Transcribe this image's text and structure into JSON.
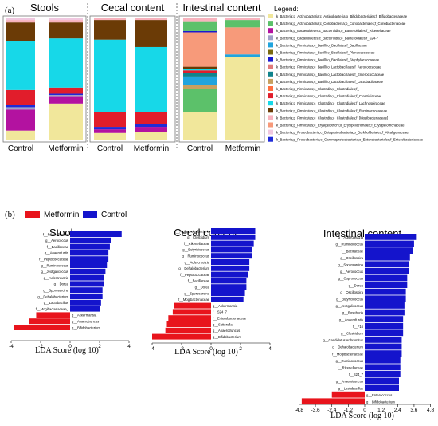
{
  "panel_a_label": "(a)",
  "panel_b_label": "(b)",
  "colors": {
    "f_Bifidobacteriaceae": "#f1e79b",
    "f_Coriobacteriaceae": "#5cc16a",
    "f_Rikenellaceae": "#b312a0",
    "f_S24_7": "#a0a0c8",
    "f_Bacillaceae": "#20a4dd",
    "f_Planococcaceae": "#7a6a10",
    "f_Staphylococcaceae": "#1a1ad0",
    "f_Aerococcaceae": "#e07a7a",
    "f_Enterococcaceae": "#10838c",
    "f_Lactobacillaceae": "#c7a060",
    "f_Clostridiaceae_orange": "#ff6f40",
    "f_Clostridiaceae": "#e11d2b",
    "f_Lachnospiraceae": "#17d8e8",
    "f_Ruminococcaceae": "#6b3b06",
    "f_Mogibacteriaceae": "#f8b2bd",
    "f_Erysipelotrichaceae": "#f79a7a",
    "f_Alcaligenaceae": "#f0c8e0",
    "f_Enterobacteriaceae": "#1f2bd8",
    "metformin": "#e8141c",
    "control": "#1414cc"
  },
  "legend": {
    "title": "Legend:",
    "items": [
      {
        "key": "f_Bifidobacteriaceae",
        "label": "k_Bacteria;p_Actinobacteria;c_Actinobacteria;o_Bifidobacteriales;f_Bifidobacteriaceae"
      },
      {
        "key": "f_Coriobacteriaceae",
        "label": "k_Bacteria;p_Actinobacteria;c_Coriobacteriia;o_Coriobacteriales;f_Coriobacteriaceae"
      },
      {
        "key": "f_Rikenellaceae",
        "label": "k_Bacteria;p_Bacteroidetes;c_Bacteroidia;o_Bacteroidales;f_Rikenellaceae"
      },
      {
        "key": "f_S24_7",
        "label": "k_Bacteria;p_Bacteroidetes;c_Bacteroidia;o_Bacteroidales;f_S24-7"
      },
      {
        "key": "f_Bacillaceae",
        "label": "k_Bacteria;p_Firmicutes;c_Bacilli;o_Bacillales;f_Bacillaceae"
      },
      {
        "key": "f_Planococcaceae",
        "label": "k_Bacteria;p_Firmicutes;c_Bacilli;o_Bacillales;f_Planococcaceae"
      },
      {
        "key": "f_Staphylococcaceae",
        "label": "k_Bacteria;p_Firmicutes;c_Bacilli;o_Bacillales;f_Staphylococcaceae"
      },
      {
        "key": "f_Aerococcaceae",
        "label": "k_Bacteria;p_Firmicutes;c_Bacilli;o_Lactobacillales;f_Aerococcaceae"
      },
      {
        "key": "f_Enterococcaceae",
        "label": "k_Bacteria;p_Firmicutes;c_Bacilli;o_Lactobacillales;f_Enterococcaceae"
      },
      {
        "key": "f_Lactobacillaceae",
        "label": "k_Bacteria;p_Firmicutes;c_Bacilli;o_Lactobacillales;f_Lactobacillaceae"
      },
      {
        "key": "f_Clostridiaceae_orange",
        "label": "k_Bacteria;p_Firmicutes;c_Clostridia;o_Clostridiales;f_"
      },
      {
        "key": "f_Clostridiaceae",
        "label": "k_Bacteria;p_Firmicutes;c_Clostridia;o_Clostridiales;f_Clostridiaceae"
      },
      {
        "key": "f_Lachnospiraceae",
        "label": "k_Bacteria;p_Firmicutes;c_Clostridia;o_Clostridiales;f_Lachnospiraceae"
      },
      {
        "key": "f_Ruminococcaceae",
        "label": "k_Bacteria;p_Firmicutes;c_Clostridia;o_Clostridiales;f_Ruminococcaceae"
      },
      {
        "key": "f_Mogibacteriaceae",
        "label": "k_Bacteria;p_Firmicutes;c_Clostridia;o_Clostridiales;f_[Mogibacteriaceae]"
      },
      {
        "key": "f_Erysipelotrichaceae",
        "label": "k_Bacteria;p_Firmicutes;c_Erysipelotrichi;o_Erysipelotrichales;f_Erysipelotrichaceae"
      },
      {
        "key": "f_Alcaligenaceae",
        "label": "k_Bacteria;p_Proteobacteria;c_Betaproteobacteria;o_Burkholderiales;f_Alcaligenaceae"
      },
      {
        "key": "f_Enterobacteriaceae",
        "label": "k_Bacteria;p_Proteobacteria;c_Gammaproteobacteria;o_Enterobacteriales;f_Enterobacteriaceae"
      }
    ]
  },
  "chart_data": [
    {
      "type": "bar",
      "stacked": true,
      "title": "Stools",
      "categories": [
        "Control",
        "Metformin"
      ],
      "ylim": [
        0,
        1
      ],
      "stack_order_bottom_to_top": true,
      "series": [
        {
          "key": "f_Bifidobacteriaceae",
          "values": [
            0.08,
            0.3
          ]
        },
        {
          "key": "f_Rikenellaceae",
          "values": [
            0.17,
            0.06
          ]
        },
        {
          "key": "f_S24_7",
          "values": [
            0.02,
            0.01
          ]
        },
        {
          "key": "f_Enterobacteriaceae",
          "values": [
            0.02,
            0.01
          ]
        },
        {
          "key": "f_Clostridiaceae",
          "values": [
            0.12,
            0.05
          ]
        },
        {
          "key": "f_Lachnospiraceae",
          "values": [
            0.4,
            0.4
          ]
        },
        {
          "key": "f_Ruminococcaceae",
          "values": [
            0.15,
            0.13
          ]
        },
        {
          "key": "f_Mogibacteriaceae",
          "values": [
            0.02,
            0.02
          ]
        },
        {
          "key": "f_Alcaligenaceae",
          "values": [
            0.02,
            0.02
          ]
        }
      ]
    },
    {
      "type": "bar",
      "stacked": true,
      "title": "Cecal content",
      "categories": [
        "Control",
        "Metformin"
      ],
      "ylim": [
        0,
        1
      ],
      "series": [
        {
          "key": "f_Bifidobacteriaceae",
          "values": [
            0.06,
            0.07
          ]
        },
        {
          "key": "f_Rikenellaceae",
          "values": [
            0.03,
            0.04
          ]
        },
        {
          "key": "f_Enterobacteriaceae",
          "values": [
            0.02,
            0.02
          ]
        },
        {
          "key": "f_Clostridiaceae",
          "values": [
            0.12,
            0.1
          ]
        },
        {
          "key": "f_Lachnospiraceae",
          "values": [
            0.59,
            0.53
          ]
        },
        {
          "key": "f_Ruminococcaceae",
          "values": [
            0.16,
            0.22
          ]
        },
        {
          "key": "f_Mogibacteriaceae",
          "values": [
            0.02,
            0.02
          ]
        }
      ]
    },
    {
      "type": "bar",
      "stacked": true,
      "title": "Intestinal content",
      "categories": [
        "Control",
        "Metformin"
      ],
      "ylim": [
        0,
        1
      ],
      "series": [
        {
          "key": "f_Bifidobacteriaceae",
          "values": [
            0.23,
            0.68
          ]
        },
        {
          "key": "f_Coriobacteriaceae",
          "values": [
            0.19,
            0.0
          ]
        },
        {
          "key": "f_Lactobacillaceae",
          "values": [
            0.03,
            0.0
          ]
        },
        {
          "key": "f_Bacillaceae",
          "values": [
            0.07,
            0.02
          ]
        },
        {
          "key": "f_Enterococcaceae",
          "values": [
            0.03,
            0.0
          ]
        },
        {
          "key": "f_Clostridiaceae",
          "values": [
            0.02,
            0.0
          ]
        },
        {
          "key": "f_Lachnospiraceae",
          "values": [
            0.01,
            0.0
          ]
        },
        {
          "key": "f_Ruminococcaceae",
          "values": [
            0.02,
            0.0
          ]
        },
        {
          "key": "f_Erysipelotrichaceae",
          "values": [
            0.28,
            0.22
          ]
        },
        {
          "key": "f_Staphylococcaceae",
          "values": [
            0.01,
            0.0
          ]
        },
        {
          "key": "f_Coriobacteriaceae",
          "values": [
            0.08,
            0.06
          ]
        },
        {
          "key": "f_Mogibacteriaceae",
          "values": [
            0.03,
            0.02
          ]
        }
      ]
    },
    {
      "type": "bar",
      "orientation": "horizontal",
      "title": "Stools",
      "xlabel": "LDA Score (log 10)",
      "xlim": [
        -4,
        4
      ],
      "xticks": [
        "-4",
        "-2",
        "0",
        "2",
        "4"
      ],
      "xtick_values": [
        -4,
        -2,
        0,
        2,
        4
      ],
      "features": [
        {
          "label": "f__Rikenellaceae",
          "value": 3.5,
          "group": "Control"
        },
        {
          "label": "g__Aerococcus",
          "value": 2.8,
          "group": "Control"
        },
        {
          "label": "f__Bacillaceae",
          "value": 2.7,
          "group": "Control"
        },
        {
          "label": "g__Anaerofustis",
          "value": 2.6,
          "group": "Control"
        },
        {
          "label": "f__Peptococcaceae",
          "value": 2.6,
          "group": "Control"
        },
        {
          "label": "g__Ruminococcus",
          "value": 2.5,
          "group": "Control"
        },
        {
          "label": "g__Jeotgalicoccus",
          "value": 2.4,
          "group": "Control"
        },
        {
          "label": "g__Adlercreutzia",
          "value": 2.3,
          "group": "Control"
        },
        {
          "label": "g__Dorea",
          "value": 2.3,
          "group": "Control"
        },
        {
          "label": "g__Sporosarcina",
          "value": 2.2,
          "group": "Control"
        },
        {
          "label": "g__Dehalobacterium",
          "value": 2.2,
          "group": "Control"
        },
        {
          "label": "g__Lactobacillus",
          "value": 2.1,
          "group": "Control"
        },
        {
          "label": "f__Mogibacteriaceae_",
          "value": 2.0,
          "group": "Control"
        },
        {
          "label": "g__Akkermansia",
          "value": -2.3,
          "group": "Metformin"
        },
        {
          "label": "g__Anaerotruncus",
          "value": -2.8,
          "group": "Metformin"
        },
        {
          "label": "g__Bifidobacterium",
          "value": -3.8,
          "group": "Metformin"
        }
      ]
    },
    {
      "type": "bar",
      "orientation": "horizontal",
      "title": "Cecal content",
      "xlabel": "LDA Score (log 10)",
      "xlim": [
        -4,
        4
      ],
      "xticks": [
        "-4",
        "-2",
        "0",
        "2",
        "4"
      ],
      "xtick_values": [
        -4,
        -2,
        0,
        2,
        4
      ],
      "features": [
        {
          "label": "c__Alphaproteobacteria",
          "value": 3.0,
          "group": "Control"
        },
        {
          "label": "g__Clostridium",
          "value": 3.0,
          "group": "Control"
        },
        {
          "label": "f__Rikenellaceae",
          "value": 2.9,
          "group": "Control"
        },
        {
          "label": "g__Butyricicoccus",
          "value": 2.8,
          "group": "Control"
        },
        {
          "label": "g__Ruminococcus",
          "value": 2.8,
          "group": "Control"
        },
        {
          "label": "g__Adlercreutzia",
          "value": 2.6,
          "group": "Control"
        },
        {
          "label": "g__Dehalobacterium",
          "value": 2.6,
          "group": "Control"
        },
        {
          "label": "f__Peptococcaceae",
          "value": 2.5,
          "group": "Control"
        },
        {
          "label": "f__Bacillaceae",
          "value": 2.4,
          "group": "Control"
        },
        {
          "label": "g__Dorea",
          "value": 2.4,
          "group": "Control"
        },
        {
          "label": "g__Sporosarcina",
          "value": 2.3,
          "group": "Control"
        },
        {
          "label": "f__Mogibacteriaceae",
          "value": 2.2,
          "group": "Control"
        },
        {
          "label": "g__Akkermansia",
          "value": -2.5,
          "group": "Metformin"
        },
        {
          "label": "f__S24_7",
          "value": -2.6,
          "group": "Metformin"
        },
        {
          "label": "f__Enterobacteriaceae",
          "value": -2.9,
          "group": "Metformin"
        },
        {
          "label": "g__Sutterella",
          "value": -3.0,
          "group": "Metformin"
        },
        {
          "label": "g__Anaerotruncus",
          "value": -3.1,
          "group": "Metformin"
        },
        {
          "label": "g__Bifidobacterium",
          "value": -4.0,
          "group": "Metformin"
        }
      ]
    },
    {
      "type": "bar",
      "orientation": "horizontal",
      "title": "Intestinal content",
      "xlabel": "LDA Score (log 10)",
      "xlim": [
        -4.8,
        4.8
      ],
      "xticks": [
        "-4.8",
        "-3.6",
        "-2.4",
        "-1.2",
        "0",
        "1.2",
        "2.4",
        "3.6",
        "4.8"
      ],
      "xtick_values": [
        -4.8,
        -3.6,
        -2.4,
        -1.2,
        0,
        1.2,
        2.4,
        3.6,
        4.8
      ],
      "features": [
        {
          "label": "g__Adlercreutzia",
          "value": 3.8,
          "group": "Control"
        },
        {
          "label": "g__Ruminococcus",
          "value": 3.6,
          "group": "Control"
        },
        {
          "label": "f__Bacillaceae",
          "value": 3.5,
          "group": "Control"
        },
        {
          "label": "g__Oscillospira",
          "value": 3.3,
          "group": "Control"
        },
        {
          "label": "g__Sporosarcina",
          "value": 3.2,
          "group": "Control"
        },
        {
          "label": "g__Aerococcus",
          "value": 3.2,
          "group": "Control"
        },
        {
          "label": "g__Coprococcus",
          "value": 3.1,
          "group": "Control"
        },
        {
          "label": "g__Dorea",
          "value": 3.1,
          "group": "Control"
        },
        {
          "label": "g__Oscillospira",
          "value": 3.0,
          "group": "Control"
        },
        {
          "label": "g__Butyricicoccus",
          "value": 3.0,
          "group": "Control"
        },
        {
          "label": "g__Jeotgalicoccus",
          "value": 2.9,
          "group": "Control"
        },
        {
          "label": "g__Roseburia",
          "value": 2.9,
          "group": "Control"
        },
        {
          "label": "g__Anaerofustis",
          "value": 2.8,
          "group": "Control"
        },
        {
          "label": "f__F16",
          "value": 2.8,
          "group": "Control"
        },
        {
          "label": "g__Clostridium",
          "value": 2.8,
          "group": "Control"
        },
        {
          "label": "g__Candidatus Arthromitus",
          "value": 2.7,
          "group": "Control"
        },
        {
          "label": "g__Dehalobacterium",
          "value": 2.7,
          "group": "Control"
        },
        {
          "label": "f__Mogibacteriaceae",
          "value": 2.7,
          "group": "Control"
        },
        {
          "label": "g__Ruminococcus",
          "value": 2.6,
          "group": "Control"
        },
        {
          "label": "f__Rikenellaceae",
          "value": 2.6,
          "group": "Control"
        },
        {
          "label": "f__S24_7",
          "value": 2.6,
          "group": "Control"
        },
        {
          "label": "g__Anaerotruncus",
          "value": 2.5,
          "group": "Control"
        },
        {
          "label": "g__Lactobacillus",
          "value": 2.5,
          "group": "Control"
        },
        {
          "label": "g__Enterococcus",
          "value": -2.4,
          "group": "Metformin"
        },
        {
          "label": "g__Bifidobacterium",
          "value": -4.6,
          "group": "Metformin"
        }
      ]
    }
  ],
  "lda_legend": [
    {
      "label": "Metformin",
      "colorKey": "metformin"
    },
    {
      "label": "Control",
      "colorKey": "control"
    }
  ]
}
